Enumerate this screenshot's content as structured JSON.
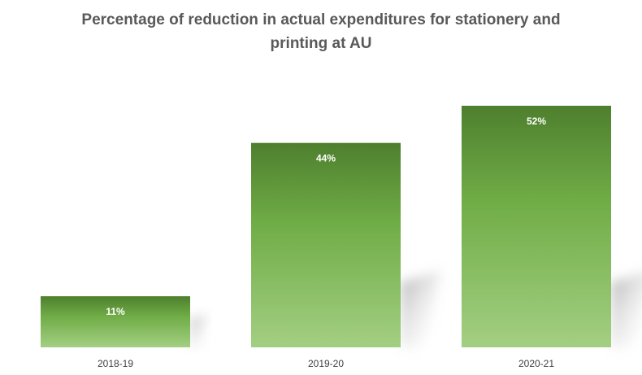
{
  "chart_data": {
    "type": "bar",
    "title_lines": [
      "Percentage of reduction in actual expenditures for stationery and",
      "printing at AU"
    ],
    "categories": [
      "2018-19",
      "2019-20",
      "2020-21"
    ],
    "values": [
      11,
      44,
      52
    ],
    "data_labels": [
      "11%",
      "44%",
      "52%"
    ],
    "unit": "%",
    "ylim": [
      0,
      52
    ],
    "grid": false,
    "legend": "none"
  },
  "colors": {
    "bar_top": "#4e7f2e",
    "bar_mid": "#70ad47",
    "bar_bottom": "#a3cf82",
    "title": "#595959",
    "axis_text": "#404040"
  }
}
